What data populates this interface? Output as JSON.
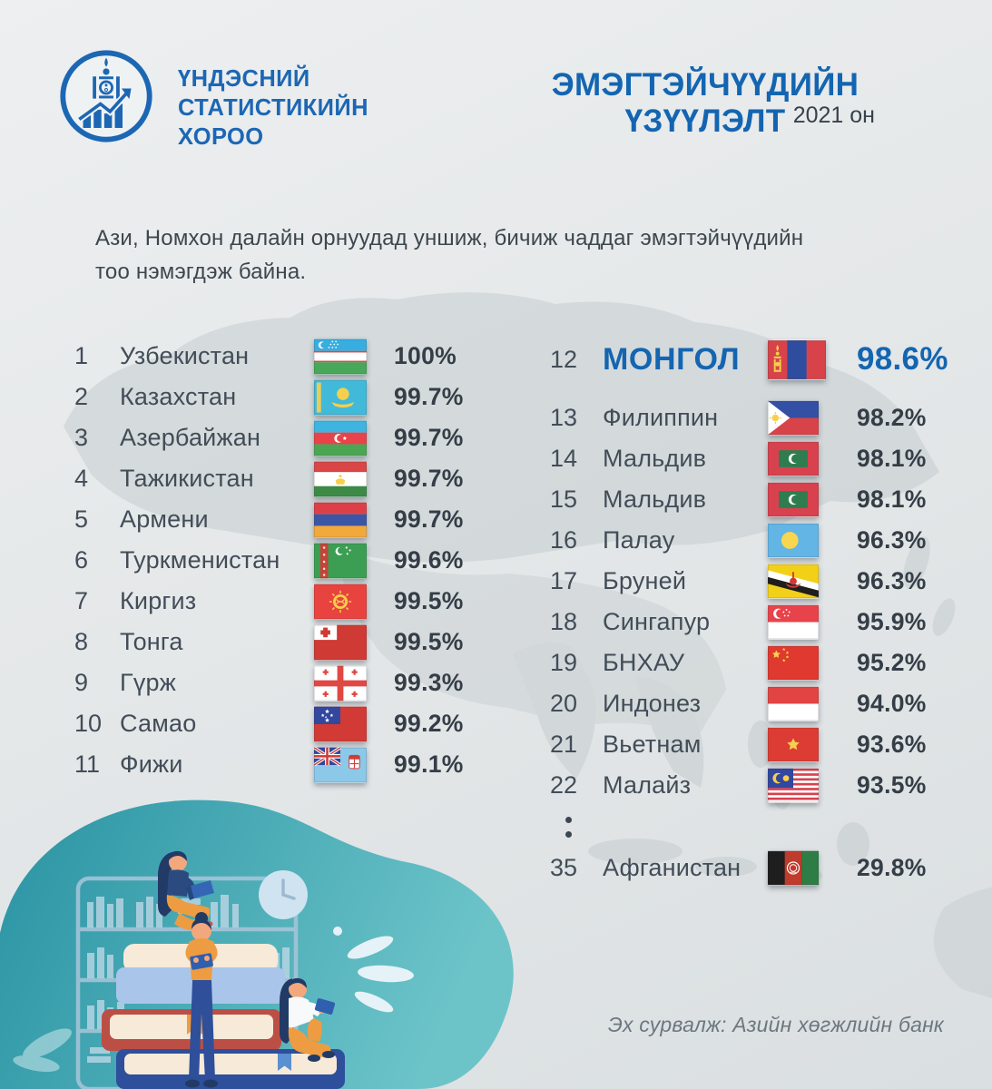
{
  "header": {
    "logo_lines": [
      "ҮНДЭСНИЙ",
      "СТАТИСТИКИЙН",
      "ХОРОО"
    ],
    "title": "ЭМЭГТЭЙЧҮҮДИЙН ҮЗҮҮЛЭЛТ",
    "year": "2021 он"
  },
  "intro": {
    "line1": "Ази, Номхон далайн орнуудад уншиж, бичиж чаддаг эмэгтэйчүүдийн",
    "line2": "тоо нэмэгдэж байна."
  },
  "left_list": [
    {
      "rank": "1",
      "name": "Узбекистан",
      "flag": "uzbekistan",
      "value": "100%"
    },
    {
      "rank": "2",
      "name": "Казахстан",
      "flag": "kazakhstan",
      "value": "99.7%"
    },
    {
      "rank": "3",
      "name": "Азербайжан",
      "flag": "azerbaijan",
      "value": "99.7%"
    },
    {
      "rank": "4",
      "name": "Тажикистан",
      "flag": "tajikistan",
      "value": "99.7%"
    },
    {
      "rank": "5",
      "name": "Армени",
      "flag": "armenia",
      "value": "99.7%"
    },
    {
      "rank": "6",
      "name": "Туркменистан",
      "flag": "turkmenistan",
      "value": "99.6%"
    },
    {
      "rank": "7",
      "name": "Киргиз",
      "flag": "kyrgyzstan",
      "value": "99.5%"
    },
    {
      "rank": "8",
      "name": "Тонга",
      "flag": "tonga",
      "value": "99.5%"
    },
    {
      "rank": "9",
      "name": "Гүрж",
      "flag": "georgia",
      "value": "99.3%"
    },
    {
      "rank": "10",
      "name": "Самао",
      "flag": "samoa",
      "value": "99.2%"
    },
    {
      "rank": "11",
      "name": "Фижи",
      "flag": "fiji",
      "value": "99.1%"
    }
  ],
  "right_list": [
    {
      "rank": "12",
      "name": "МОНГОЛ",
      "flag": "mongolia",
      "value": "98.6%",
      "highlight": true
    },
    {
      "rank": "13",
      "name": "Филиппин",
      "flag": "philippines",
      "value": "98.2%"
    },
    {
      "rank": "14",
      "name": "Мальдив",
      "flag": "maldives",
      "value": "98.1%"
    },
    {
      "rank": "15",
      "name": "Мальдив",
      "flag": "maldives",
      "value": "98.1%"
    },
    {
      "rank": "16",
      "name": "Палау",
      "flag": "palau",
      "value": "96.3%"
    },
    {
      "rank": "17",
      "name": "Бруней",
      "flag": "brunei",
      "value": "96.3%"
    },
    {
      "rank": "18",
      "name": "Сингапур",
      "flag": "singapore",
      "value": "95.9%"
    },
    {
      "rank": "19",
      "name": "БНХАУ",
      "flag": "china",
      "value": "95.2%"
    },
    {
      "rank": "20",
      "name": "Индонез",
      "flag": "indonesia",
      "value": "94.0%"
    },
    {
      "rank": "21",
      "name": "Вьетнам",
      "flag": "vietnam",
      "value": "93.6%"
    },
    {
      "rank": "22",
      "name": "Малайз",
      "flag": "malaysia",
      "value": "93.5%"
    },
    {
      "divider": true
    },
    {
      "rank": "35",
      "name": "Афганистан",
      "flag": "afghanistan",
      "value": "29.8%"
    }
  ],
  "source": "Эх сурвалж: Азийн хөгжлийн банк",
  "colors": {
    "brand_blue": "#1465b1",
    "text_dark": "#3d464e",
    "teal_blob": "#3aa0ae",
    "map_gray": "#c6cdd0"
  },
  "chart_data": {
    "type": "table",
    "title": "ЭМЭГТЭЙЧҮҮДИЙН ҮЗҮҮЛЭЛТ — 2021 он",
    "subtitle": "Ази, Номхон далайн орнуудад уншиж, бичиж чаддаг эмэгтэйчүүдийн тоо нэмэгдэж байна.",
    "columns": [
      "rank",
      "country",
      "female_literacy"
    ],
    "rows": [
      [
        1,
        "Узбекистан",
        "100%"
      ],
      [
        2,
        "Казахстан",
        "99.7%"
      ],
      [
        3,
        "Азербайжан",
        "99.7%"
      ],
      [
        4,
        "Тажикистан",
        "99.7%"
      ],
      [
        5,
        "Армени",
        "99.7%"
      ],
      [
        6,
        "Туркменистан",
        "99.6%"
      ],
      [
        7,
        "Киргиз",
        "99.5%"
      ],
      [
        8,
        "Тонга",
        "99.5%"
      ],
      [
        9,
        "Гүрж",
        "99.3%"
      ],
      [
        10,
        "Самао",
        "99.2%"
      ],
      [
        11,
        "Фижи",
        "99.1%"
      ],
      [
        12,
        "МОНГОЛ",
        "98.6%"
      ],
      [
        13,
        "Филиппин",
        "98.2%"
      ],
      [
        14,
        "Мальдив",
        "98.1%"
      ],
      [
        15,
        "Мальдив",
        "98.1%"
      ],
      [
        16,
        "Палау",
        "96.3%"
      ],
      [
        17,
        "Бруней",
        "96.3%"
      ],
      [
        18,
        "Сингапур",
        "95.9%"
      ],
      [
        19,
        "БНХАУ",
        "95.2%"
      ],
      [
        20,
        "Индонез",
        "94.0%"
      ],
      [
        21,
        "Вьетнам",
        "93.6%"
      ],
      [
        22,
        "Малайз",
        "93.5%"
      ],
      [
        35,
        "Афганистан",
        "29.8%"
      ]
    ],
    "highlighted_row": [
      12,
      "МОНГОЛ",
      "98.6%"
    ],
    "source": "Эх сурвалж: Азийн хөгжлийн банк"
  }
}
